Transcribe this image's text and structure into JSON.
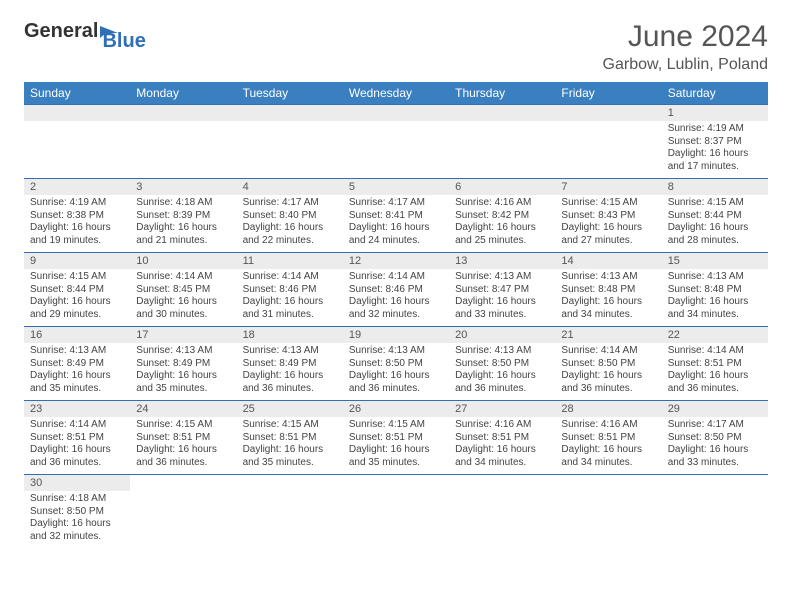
{
  "logo": {
    "text1": "General",
    "text2": "Blue",
    "accent": "#2e6fb5"
  },
  "title": "June 2024",
  "location": "Garbow, Lublin, Poland",
  "colors": {
    "header_bg": "#3a7fc0",
    "header_fg": "#ffffff",
    "border": "#2e6fb5",
    "daynum_bg": "#ececec",
    "text": "#444444"
  },
  "weekdays": [
    "Sunday",
    "Monday",
    "Tuesday",
    "Wednesday",
    "Thursday",
    "Friday",
    "Saturday"
  ],
  "weeks": [
    [
      null,
      null,
      null,
      null,
      null,
      null,
      {
        "n": "1",
        "sr": "4:19 AM",
        "ss": "8:37 PM",
        "dl": "16 hours and 17 minutes."
      }
    ],
    [
      {
        "n": "2",
        "sr": "4:19 AM",
        "ss": "8:38 PM",
        "dl": "16 hours and 19 minutes."
      },
      {
        "n": "3",
        "sr": "4:18 AM",
        "ss": "8:39 PM",
        "dl": "16 hours and 21 minutes."
      },
      {
        "n": "4",
        "sr": "4:17 AM",
        "ss": "8:40 PM",
        "dl": "16 hours and 22 minutes."
      },
      {
        "n": "5",
        "sr": "4:17 AM",
        "ss": "8:41 PM",
        "dl": "16 hours and 24 minutes."
      },
      {
        "n": "6",
        "sr": "4:16 AM",
        "ss": "8:42 PM",
        "dl": "16 hours and 25 minutes."
      },
      {
        "n": "7",
        "sr": "4:15 AM",
        "ss": "8:43 PM",
        "dl": "16 hours and 27 minutes."
      },
      {
        "n": "8",
        "sr": "4:15 AM",
        "ss": "8:44 PM",
        "dl": "16 hours and 28 minutes."
      }
    ],
    [
      {
        "n": "9",
        "sr": "4:15 AM",
        "ss": "8:44 PM",
        "dl": "16 hours and 29 minutes."
      },
      {
        "n": "10",
        "sr": "4:14 AM",
        "ss": "8:45 PM",
        "dl": "16 hours and 30 minutes."
      },
      {
        "n": "11",
        "sr": "4:14 AM",
        "ss": "8:46 PM",
        "dl": "16 hours and 31 minutes."
      },
      {
        "n": "12",
        "sr": "4:14 AM",
        "ss": "8:46 PM",
        "dl": "16 hours and 32 minutes."
      },
      {
        "n": "13",
        "sr": "4:13 AM",
        "ss": "8:47 PM",
        "dl": "16 hours and 33 minutes."
      },
      {
        "n": "14",
        "sr": "4:13 AM",
        "ss": "8:48 PM",
        "dl": "16 hours and 34 minutes."
      },
      {
        "n": "15",
        "sr": "4:13 AM",
        "ss": "8:48 PM",
        "dl": "16 hours and 34 minutes."
      }
    ],
    [
      {
        "n": "16",
        "sr": "4:13 AM",
        "ss": "8:49 PM",
        "dl": "16 hours and 35 minutes."
      },
      {
        "n": "17",
        "sr": "4:13 AM",
        "ss": "8:49 PM",
        "dl": "16 hours and 35 minutes."
      },
      {
        "n": "18",
        "sr": "4:13 AM",
        "ss": "8:49 PM",
        "dl": "16 hours and 36 minutes."
      },
      {
        "n": "19",
        "sr": "4:13 AM",
        "ss": "8:50 PM",
        "dl": "16 hours and 36 minutes."
      },
      {
        "n": "20",
        "sr": "4:13 AM",
        "ss": "8:50 PM",
        "dl": "16 hours and 36 minutes."
      },
      {
        "n": "21",
        "sr": "4:14 AM",
        "ss": "8:50 PM",
        "dl": "16 hours and 36 minutes."
      },
      {
        "n": "22",
        "sr": "4:14 AM",
        "ss": "8:51 PM",
        "dl": "16 hours and 36 minutes."
      }
    ],
    [
      {
        "n": "23",
        "sr": "4:14 AM",
        "ss": "8:51 PM",
        "dl": "16 hours and 36 minutes."
      },
      {
        "n": "24",
        "sr": "4:15 AM",
        "ss": "8:51 PM",
        "dl": "16 hours and 36 minutes."
      },
      {
        "n": "25",
        "sr": "4:15 AM",
        "ss": "8:51 PM",
        "dl": "16 hours and 35 minutes."
      },
      {
        "n": "26",
        "sr": "4:15 AM",
        "ss": "8:51 PM",
        "dl": "16 hours and 35 minutes."
      },
      {
        "n": "27",
        "sr": "4:16 AM",
        "ss": "8:51 PM",
        "dl": "16 hours and 34 minutes."
      },
      {
        "n": "28",
        "sr": "4:16 AM",
        "ss": "8:51 PM",
        "dl": "16 hours and 34 minutes."
      },
      {
        "n": "29",
        "sr": "4:17 AM",
        "ss": "8:50 PM",
        "dl": "16 hours and 33 minutes."
      }
    ],
    [
      {
        "n": "30",
        "sr": "4:18 AM",
        "ss": "8:50 PM",
        "dl": "16 hours and 32 minutes."
      },
      null,
      null,
      null,
      null,
      null,
      null
    ]
  ],
  "labels": {
    "sunrise": "Sunrise:",
    "sunset": "Sunset:",
    "daylight": "Daylight:"
  }
}
